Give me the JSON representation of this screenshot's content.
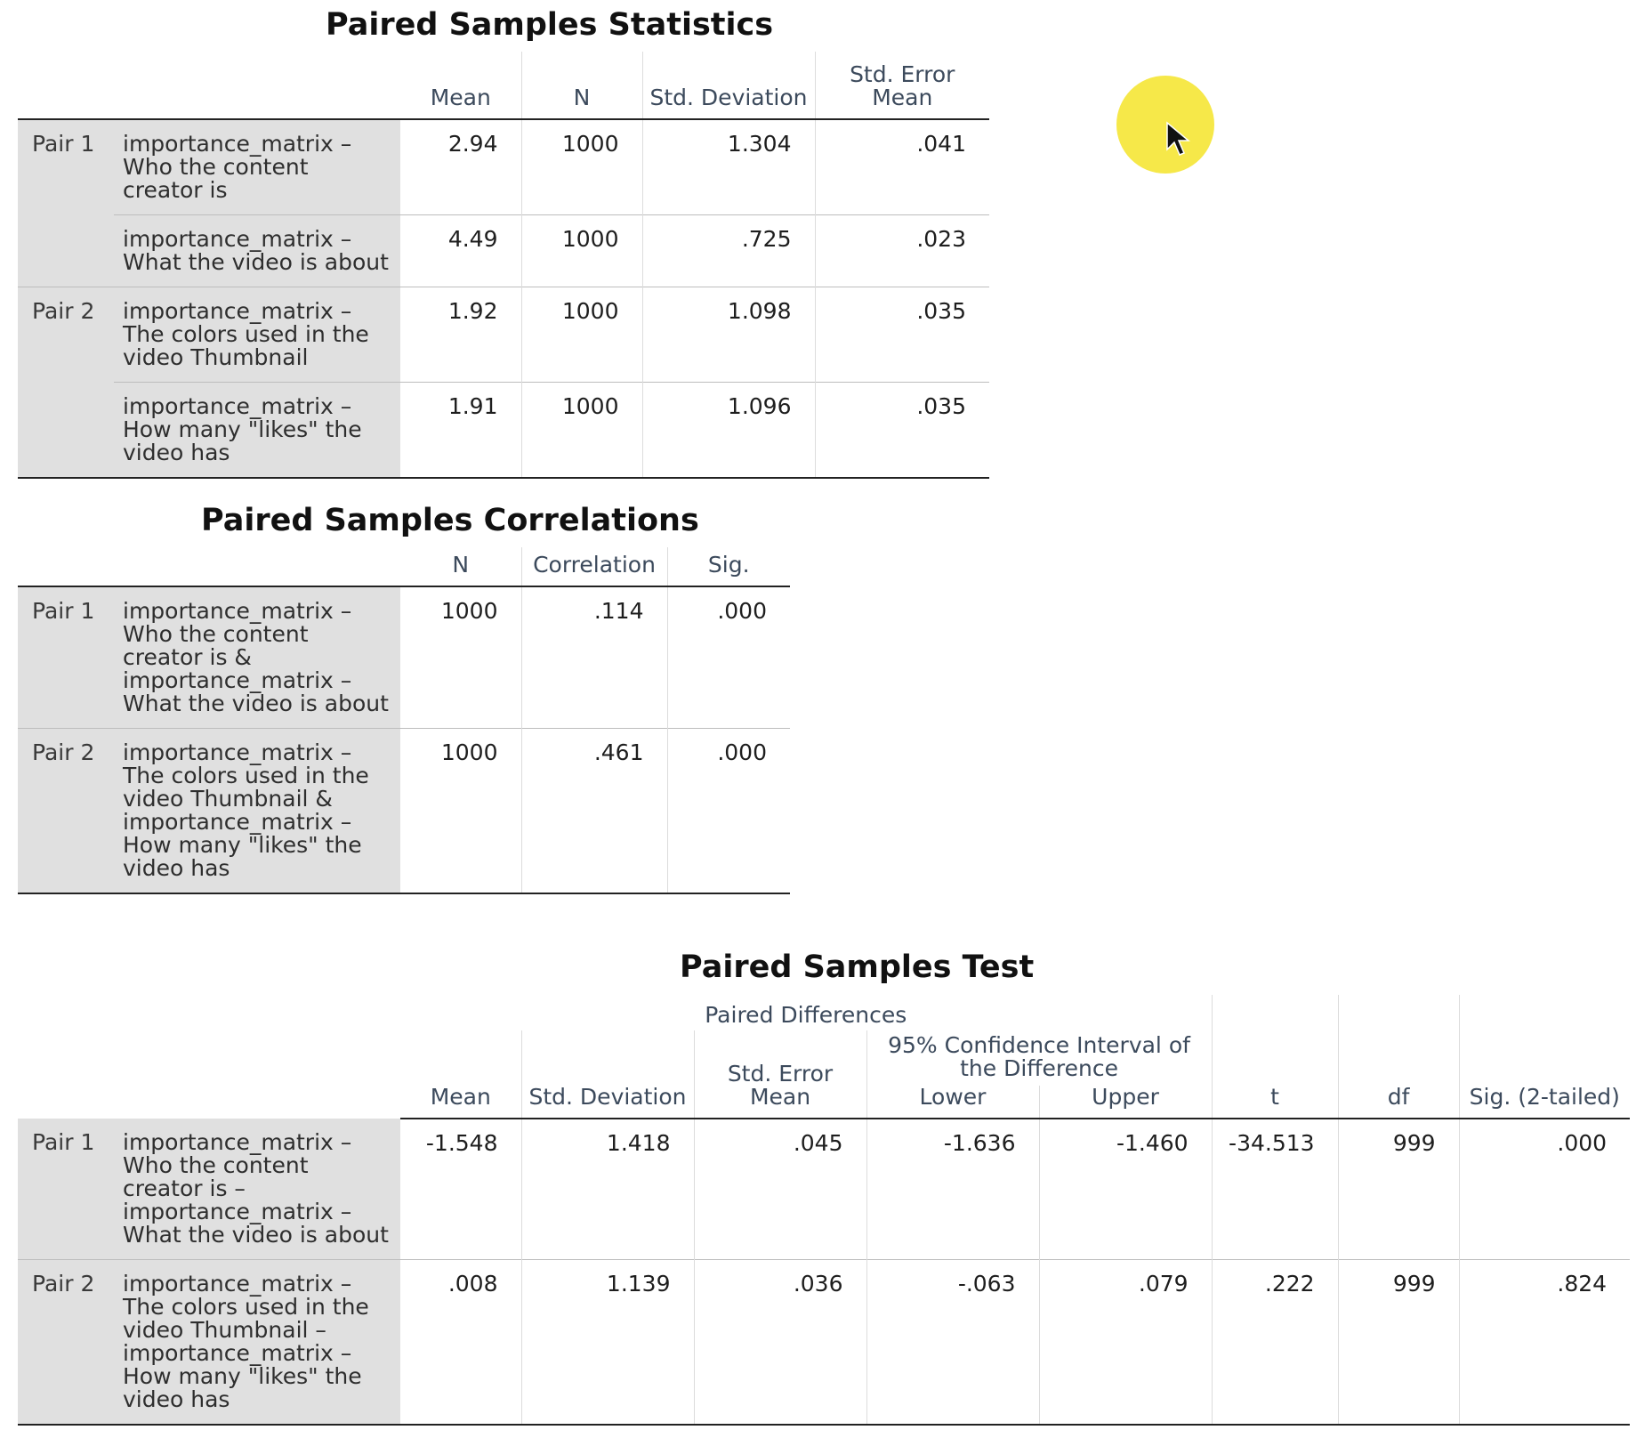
{
  "stats": {
    "title": "Paired Samples Statistics",
    "headers": [
      "Mean",
      "N",
      "Std. Deviation",
      "Std. Error Mean"
    ],
    "rows": [
      {
        "pair": "Pair 1",
        "var": "importance_matrix – Who the content creator is",
        "mean": "2.94",
        "n": "1000",
        "sd": "1.304",
        "se": ".041"
      },
      {
        "pair": "",
        "var": "importance_matrix – What the video is about",
        "mean": "4.49",
        "n": "1000",
        "sd": ".725",
        "se": ".023"
      },
      {
        "pair": "Pair 2",
        "var": "importance_matrix – The colors used in the video Thumbnail",
        "mean": "1.92",
        "n": "1000",
        "sd": "1.098",
        "se": ".035"
      },
      {
        "pair": "",
        "var": "importance_matrix – How many \"likes\" the video has",
        "mean": "1.91",
        "n": "1000",
        "sd": "1.096",
        "se": ".035"
      }
    ]
  },
  "corr": {
    "title": "Paired Samples Correlations",
    "headers": [
      "N",
      "Correlation",
      "Sig."
    ],
    "rows": [
      {
        "pair": "Pair 1",
        "var": "importance_matrix – Who the content creator is & importance_matrix – What the video is about",
        "n": "1000",
        "corr": ".114",
        "sig": ".000"
      },
      {
        "pair": "Pair 2",
        "var": "importance_matrix – The colors used in the video Thumbnail & importance_matrix – How many \"likes\" the video has",
        "n": "1000",
        "corr": ".461",
        "sig": ".000"
      }
    ]
  },
  "test": {
    "title": "Paired Samples Test",
    "group_header": "Paired Differences",
    "ci_header": "95% Confidence Interval of the Difference",
    "headers": {
      "mean": "Mean",
      "sd": "Std. Deviation",
      "se": "Std. Error Mean",
      "lower": "Lower",
      "upper": "Upper",
      "t": "t",
      "df": "df",
      "sig": "Sig. (2-tailed)"
    },
    "rows": [
      {
        "pair": "Pair 1",
        "var": "importance_matrix – Who the content creator is – importance_matrix – What the video is about",
        "mean": "-1.548",
        "sd": "1.418",
        "se": ".045",
        "lower": "-1.636",
        "upper": "-1.460",
        "t": "-34.513",
        "df": "999",
        "sig": ".000"
      },
      {
        "pair": "Pair 2",
        "var": "importance_matrix – The colors used in the video Thumbnail – importance_matrix – How many \"likes\" the video has",
        "mean": ".008",
        "sd": "1.139",
        "se": ".036",
        "lower": "-.063",
        "upper": ".079",
        "t": ".222",
        "df": "999",
        "sig": ".824"
      }
    ]
  },
  "icons": {
    "cursor": "mouse-pointer-icon",
    "highlight": "cursor-highlight",
    "highlight_color": "#f5e63a"
  }
}
